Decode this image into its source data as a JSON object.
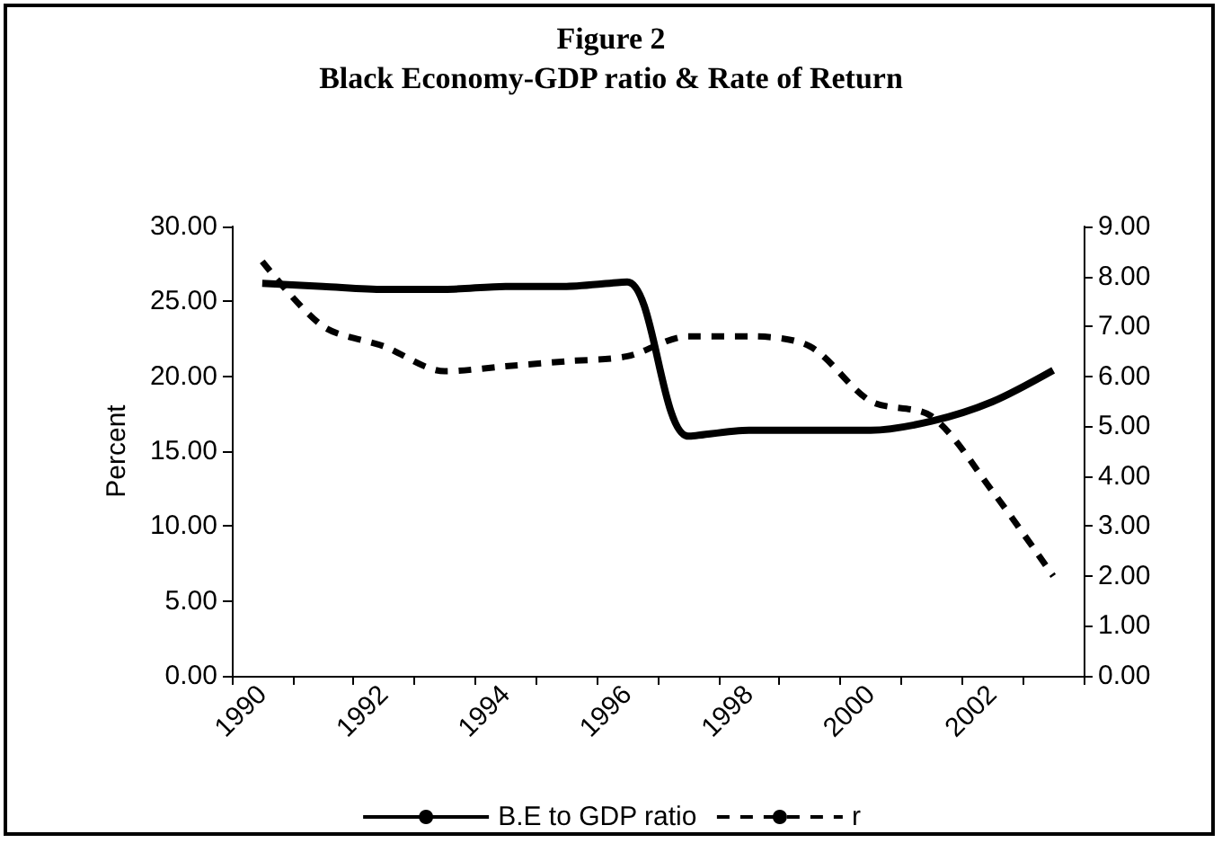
{
  "chart_data": {
    "type": "line",
    "title": "Figure 2",
    "subtitle": "Black Economy-GDP ratio & Rate of Return",
    "ylabel": "Percent",
    "categories": [
      "1990",
      null,
      "1992",
      null,
      "1994",
      null,
      "1996",
      null,
      "1998",
      null,
      "2000",
      null,
      "2002",
      null
    ],
    "series": [
      {
        "name": "B.E to GDP ratio",
        "color": "#000000",
        "line_style": "solid",
        "values": [
          26.2,
          26.0,
          25.8,
          25.8,
          26.0,
          26.0,
          26.3,
          16.0,
          16.4,
          16.4,
          16.4,
          17.0,
          18.3,
          20.4
        ]
      },
      {
        "name": "r",
        "color": "#000000",
        "line_style": "dashed",
        "axis": "y2",
        "values": [
          8.3,
          7.0,
          6.6,
          6.1,
          6.2,
          6.3,
          6.4,
          6.8,
          6.8,
          6.6,
          5.5,
          5.2,
          3.7,
          2.0
        ]
      }
    ],
    "ylim": [
      0,
      30
    ],
    "yticks": [
      {
        "value": 0,
        "label": "0.00"
      },
      {
        "value": 5,
        "label": "5.00"
      },
      {
        "value": 10,
        "label": "10.00"
      },
      {
        "value": 15,
        "label": "15.00"
      },
      {
        "value": 20,
        "label": "20.00"
      },
      {
        "value": 25,
        "label": "25.00"
      },
      {
        "value": 30,
        "label": "30.00"
      }
    ],
    "y2lim": [
      0,
      9
    ],
    "y2ticks": [
      {
        "value": 0,
        "label": "0.00"
      },
      {
        "value": 1,
        "label": "1.00"
      },
      {
        "value": 2,
        "label": "2.00"
      },
      {
        "value": 3,
        "label": "3.00"
      },
      {
        "value": 4,
        "label": "4.00"
      },
      {
        "value": 5,
        "label": "5.00"
      },
      {
        "value": 6,
        "label": "6.00"
      },
      {
        "value": 7,
        "label": "7.00"
      },
      {
        "value": 8,
        "label": "8.00"
      },
      {
        "value": 9,
        "label": "9.00"
      }
    ],
    "grid": false,
    "legend": "bottom",
    "marker": "none"
  }
}
